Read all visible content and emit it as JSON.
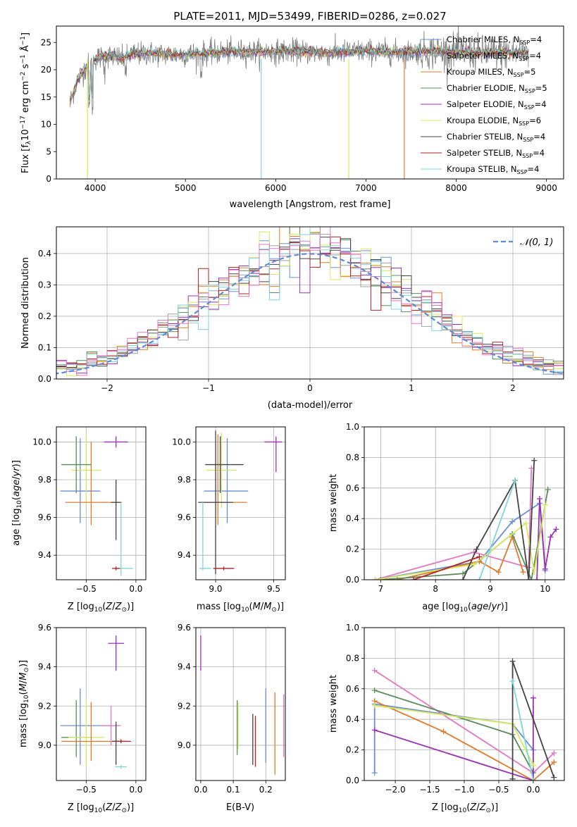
{
  "figure": {
    "title": "PLATE=2011, MJD=53499, FIBERID=0286, z=0.027"
  },
  "colors": [
    "#6a8fd8",
    "#9aa3a8",
    "#e07b2a",
    "#5d8b5d",
    "#9a32b5",
    "#d8e860",
    "#444444",
    "#b22222",
    "#7fd6d6",
    "#e377c2"
  ],
  "chart_data": [
    {
      "id": "spectrum",
      "type": "line",
      "xlabel": "wavelength [Angstrom, rest frame]",
      "ylabel": "Flux [fλ10⁻¹⁷ erg cm⁻² s⁻¹ Å⁻¹]",
      "xlim": [
        3570,
        9190
      ],
      "ylim": [
        0,
        28
      ],
      "xticks": [
        4000,
        5000,
        6000,
        7000,
        8000,
        9000
      ],
      "yticks": [
        0,
        5,
        10,
        15,
        20,
        25
      ],
      "legend_position": "top-right",
      "series": [
        {
          "name": "Chabrier MILES, N",
          "sub": "SSP",
          "suffix": "=4",
          "color": "#6a8fd8"
        },
        {
          "name": "Salpeter MILES, N",
          "sub": "SSP",
          "suffix": "=4",
          "color": "#9aa3a8"
        },
        {
          "name": "Kroupa MILES, N",
          "sub": "SSP",
          "suffix": "=5",
          "color": "#e07b2a"
        },
        {
          "name": "Chabrier ELODIE, N",
          "sub": "SSP",
          "suffix": "=5",
          "color": "#5d8b5d"
        },
        {
          "name": "Salpeter ELODIE, N",
          "sub": "SSP",
          "suffix": "=4",
          "color": "#9a32b5"
        },
        {
          "name": "Kroupa ELODIE, N",
          "sub": "SSP",
          "suffix": "=6",
          "color": "#d8e860"
        },
        {
          "name": "Chabrier STELIB, N",
          "sub": "SSP",
          "suffix": "=4",
          "color": "#444444"
        },
        {
          "name": "Salpeter STELIB, N",
          "sub": "SSP",
          "suffix": "=4",
          "color": "#b22222"
        },
        {
          "name": "Kroupa STELIB, N",
          "sub": "SSP",
          "suffix": "=4",
          "color": "#7fd6d6"
        }
      ],
      "spectrum_profile": {
        "x": [
          3720,
          3800,
          3900,
          4000,
          4100,
          4200,
          4300,
          4400,
          4600,
          4800,
          5000,
          5200,
          5400,
          5600,
          5800,
          6000,
          6200,
          6400,
          6600,
          6800,
          7000,
          7200,
          7400,
          7600,
          7800,
          8000,
          8200,
          8400,
          8600,
          8800
        ],
        "y": [
          14,
          18,
          20.5,
          22,
          22.5,
          22.5,
          22,
          22.8,
          23,
          22.8,
          22.8,
          23,
          23.2,
          23.3,
          23.3,
          23.3,
          23.4,
          23.2,
          23,
          23.3,
          23.4,
          23.3,
          23.2,
          23.3,
          23.4,
          23.2,
          23.1,
          23,
          23.1,
          23.2
        ]
      }
    },
    {
      "id": "residuals",
      "type": "histogram",
      "xlabel": "(data-model)/error",
      "ylabel": "Normed distribution",
      "xlim": [
        -2.5,
        2.5
      ],
      "ylim": [
        0,
        0.485
      ],
      "xticks": [
        -2,
        -1,
        0,
        1,
        2
      ],
      "xticklabels": [
        "−2",
        "−1",
        "0",
        "1",
        "2"
      ],
      "yticks": [
        0.0,
        0.1,
        0.2,
        0.3,
        0.4
      ],
      "yticklabels": [
        "0.0",
        "0.1",
        "0.2",
        "0.3",
        "0.4"
      ],
      "legend_label": "𝒩(0, 1)",
      "legend_position": "top-right",
      "bin_width": 0.1,
      "hist_range": [
        -2.5,
        2.5
      ],
      "reference_curve": "normal(0,1)"
    },
    {
      "id": "age-vs-Z",
      "type": "errorbar",
      "xlabel": "Z [log₁₀(Z/Z⊙)]",
      "ylabel": "age  [log₁₀(age/yr)]",
      "xlim": [
        -0.8,
        0.1
      ],
      "ylim": [
        9.27,
        10.08
      ],
      "xticks": [
        -0.5,
        0.0
      ],
      "xticklabels": [
        "−0.5",
        "0.0"
      ],
      "yticks": [
        9.4,
        9.6,
        9.8,
        10.0
      ],
      "yticklabels": [
        "9.4",
        "9.6",
        "9.8",
        "10.0"
      ],
      "points": [
        {
          "x": -0.56,
          "y": 9.74,
          "xerr": [
            0.2,
            0.2
          ],
          "yerr": [
            0.17,
            0.28
          ],
          "color": "#6a8fd8"
        },
        {
          "x": -0.5,
          "y": 9.85,
          "xerr": [
            0.15,
            0.15
          ],
          "yerr": [
            0.18,
            0.18
          ],
          "color": "#d8e860"
        },
        {
          "x": -0.45,
          "y": 9.68,
          "xerr": [
            0.26,
            0.31
          ],
          "yerr": [
            0.12,
            0.32
          ],
          "color": "#e07b2a"
        },
        {
          "x": -0.6,
          "y": 9.88,
          "xerr": [
            0.15,
            0.15
          ],
          "yerr": [
            0.15,
            0.15
          ],
          "color": "#5d8b5d"
        },
        {
          "x": -0.2,
          "y": 9.68,
          "xerr": [
            0.05,
            0.05
          ],
          "yerr": [
            0.2,
            0.12
          ],
          "color": "#444444"
        },
        {
          "x": -0.2,
          "y": 10.0,
          "xerr": [
            0.12,
            0.12
          ],
          "yerr": [
            0.03,
            0.03
          ],
          "color": "#9a32b5"
        },
        {
          "x": -0.15,
          "y": 9.33,
          "xerr": [
            0.06,
            0.12
          ],
          "yerr": [
            0.04,
            0.35
          ],
          "color": "#7fd6d6"
        },
        {
          "x": -0.2,
          "y": 9.33,
          "xerr": [
            0.04,
            0.04
          ],
          "yerr": [
            0.01,
            0.01
          ],
          "color": "#b22222"
        }
      ]
    },
    {
      "id": "age-vs-mass",
      "type": "errorbar",
      "xlabel": "mass [log₁₀(M/M⊙)]",
      "ylabel": "",
      "xlim": [
        8.83,
        9.6
      ],
      "ylim": [
        9.27,
        10.08
      ],
      "xticks": [
        9.0,
        9.5
      ],
      "xticklabels": [
        "9.0",
        "9.5"
      ],
      "yticks": [
        9.4,
        9.6,
        9.8,
        10.0
      ],
      "yticklabels": [
        "9.4",
        "9.6",
        "9.8",
        "10.0"
      ],
      "points": [
        {
          "x": 9.1,
          "y": 9.74,
          "xerr": [
            0.2,
            0.18
          ],
          "yerr": [
            0.17,
            0.28
          ],
          "color": "#6a8fd8"
        },
        {
          "x": 9.05,
          "y": 9.85,
          "xerr": [
            0.13,
            0.13
          ],
          "yerr": [
            0.2,
            0.2
          ],
          "color": "#d8e860"
        },
        {
          "x": 9.02,
          "y": 9.68,
          "xerr": [
            0.12,
            0.25
          ],
          "yerr": [
            0.12,
            0.36
          ],
          "color": "#e07b2a"
        },
        {
          "x": 9.04,
          "y": 9.88,
          "xerr": [
            0.13,
            0.2
          ],
          "yerr": [
            0.15,
            0.15
          ],
          "color": "#444444"
        },
        {
          "x": 9.52,
          "y": 10.0,
          "xerr": [
            0.1,
            0.05
          ],
          "yerr": [
            0.16,
            0.03
          ],
          "color": "#9a32b5"
        },
        {
          "x": 9.0,
          "y": 9.68,
          "xerr": [
            0.15,
            0.15
          ],
          "yerr": [
            0.38,
            0.38
          ],
          "color": "#444444"
        },
        {
          "x": 8.89,
          "y": 9.33,
          "xerr": [
            0.03,
            0.07
          ],
          "yerr": [
            0.01,
            0.35
          ],
          "color": "#7fd6d6"
        },
        {
          "x": 9.07,
          "y": 9.33,
          "xerr": [
            0.09,
            0.09
          ],
          "yerr": [
            0.01,
            0.01
          ],
          "color": "#b22222"
        }
      ]
    },
    {
      "id": "weight-vs-age",
      "type": "line",
      "xlabel": "age  [log₁₀(age/yr)]",
      "ylabel": "mass weight",
      "xlim": [
        6.7,
        10.35
      ],
      "ylim": [
        0,
        1.0
      ],
      "xticks": [
        7,
        8,
        9,
        10
      ],
      "yticks": [
        0.0,
        0.2,
        0.4,
        0.6,
        0.8,
        1.0
      ],
      "yticklabels": [
        "0.0",
        "0.2",
        "0.4",
        "0.6",
        "0.8",
        "1.0"
      ],
      "series": [
        {
          "color": "#6a8fd8",
          "x": [
            6.9,
            8.8,
            9.4,
            9.9,
            10.0
          ],
          "y": [
            0.0,
            0.12,
            0.38,
            0.5,
            0.06
          ]
        },
        {
          "color": "#e377c2",
          "x": [
            6.9,
            8.7,
            9.7,
            9.75
          ],
          "y": [
            0.0,
            0.18,
            0.08,
            0.73
          ]
        },
        {
          "color": "#e07b2a",
          "x": [
            7.3,
            8.8,
            9.15,
            9.4,
            9.6
          ],
          "y": [
            0.0,
            0.12,
            0.05,
            0.28,
            0.05
          ]
        },
        {
          "color": "#5d8b5d",
          "x": [
            7.0,
            8.5,
            9.4,
            9.75,
            10.05
          ],
          "y": [
            0.0,
            0.04,
            0.3,
            0.0,
            0.59
          ]
        },
        {
          "color": "#9a32b5",
          "x": [
            9.85,
            9.9,
            10.0,
            10.1,
            10.2
          ],
          "y": [
            0.0,
            0.53,
            0.07,
            0.28,
            0.33
          ]
        },
        {
          "color": "#d8e860",
          "x": [
            6.9,
            8.7,
            9.65,
            9.8,
            10.0
          ],
          "y": [
            0.0,
            0.1,
            0.37,
            0.05,
            0.49
          ]
        },
        {
          "color": "#444444",
          "x": [
            8.5,
            8.75,
            9.45,
            9.7,
            9.8
          ],
          "y": [
            0.0,
            0.2,
            0.65,
            0.0,
            0.78
          ]
        },
        {
          "color": "#b22222",
          "x": [
            7.6,
            8.8
          ],
          "y": [
            0.0,
            0.15
          ]
        },
        {
          "color": "#7fd6d6",
          "x": [
            8.8,
            9.45
          ],
          "y": [
            0.0,
            0.65
          ]
        }
      ]
    },
    {
      "id": "mass-vs-Z",
      "type": "errorbar",
      "xlabel": "Z [log₁₀(Z/Z⊙)]",
      "ylabel": "mass [log₁₀(M/M⊙)]",
      "xlim": [
        -0.8,
        0.1
      ],
      "ylim": [
        8.82,
        9.6
      ],
      "xticks": [
        -0.5,
        0.0
      ],
      "xticklabels": [
        "−0.5",
        "0.0"
      ],
      "yticks": [
        9.0,
        9.2,
        9.4,
        9.6
      ],
      "yticklabels": [
        "9.0",
        "9.2",
        "9.4",
        "9.6"
      ],
      "points": [
        {
          "x": -0.56,
          "y": 9.1,
          "xerr": [
            0.2,
            0.35
          ],
          "yerr": [
            0.2,
            0.19
          ],
          "color": "#6a8fd8"
        },
        {
          "x": -0.6,
          "y": 9.04,
          "xerr": [
            0.15,
            0.15
          ],
          "yerr": [
            0.1,
            0.19
          ],
          "color": "#5d8b5d"
        },
        {
          "x": -0.5,
          "y": 9.04,
          "xerr": [
            0.18,
            0.18
          ],
          "yerr": [
            0.15,
            0.19
          ],
          "color": "#d8e860"
        },
        {
          "x": -0.45,
          "y": 9.02,
          "xerr": [
            0.3,
            0.3
          ],
          "yerr": [
            0.1,
            0.2
          ],
          "color": "#e07b2a"
        },
        {
          "x": -0.2,
          "y": 9.52,
          "xerr": [
            0.08,
            0.08
          ],
          "yerr": [
            0.14,
            0.04
          ],
          "color": "#9a32b5"
        },
        {
          "x": -0.25,
          "y": 9.1,
          "xerr": [
            0.1,
            0.1
          ],
          "yerr": [
            0.1,
            0.1
          ],
          "color": "#e377c2"
        },
        {
          "x": -0.2,
          "y": 9.02,
          "xerr": [
            0.04,
            0.1
          ],
          "yerr": [
            0.12,
            0.1
          ],
          "color": "#444444"
        },
        {
          "x": -0.15,
          "y": 9.02,
          "xerr": [
            0.06,
            0.1
          ],
          "yerr": [
            0.01,
            0.01
          ],
          "color": "#b22222"
        },
        {
          "x": -0.15,
          "y": 8.89,
          "xerr": [
            0.06,
            0.06
          ],
          "yerr": [
            0.01,
            0.01
          ],
          "color": "#7fd6d6"
        }
      ]
    },
    {
      "id": "mass-vs-ebv",
      "type": "errorbar",
      "xlabel": "E(B-V)",
      "ylabel": "",
      "xlim": [
        -0.015,
        0.26
      ],
      "ylim": [
        8.82,
        9.6
      ],
      "xticks": [
        0.0,
        0.1,
        0.2
      ],
      "xticklabels": [
        "0.0",
        "0.1",
        "0.2"
      ],
      "yticks": [
        9.0,
        9.2,
        9.4,
        9.6
      ],
      "yticklabels": [
        "9.0",
        "9.2",
        "9.4",
        "9.6"
      ],
      "points": [
        {
          "x": 0.0,
          "y": 9.47,
          "xerr": [
            0,
            0
          ],
          "yerr": [
            0.09,
            0.09
          ],
          "color": "#9a32b5"
        },
        {
          "x": 0.112,
          "y": 9.09,
          "xerr": [
            0,
            0
          ],
          "yerr": [
            0.14,
            0.14
          ],
          "color": "#5d8b5d"
        },
        {
          "x": 0.115,
          "y": 9.1,
          "xerr": [
            0,
            0
          ],
          "yerr": [
            0.12,
            0.12
          ],
          "color": "#d8e860"
        },
        {
          "x": 0.16,
          "y": 9.03,
          "xerr": [
            0,
            0
          ],
          "yerr": [
            0.13,
            0.13
          ],
          "color": "#444444"
        },
        {
          "x": 0.168,
          "y": 9.02,
          "xerr": [
            0,
            0
          ],
          "yerr": [
            0.13,
            0.13
          ],
          "color": "#b22222"
        },
        {
          "x": 0.2,
          "y": 9.1,
          "xerr": [
            0,
            0
          ],
          "yerr": [
            0.19,
            0.19
          ],
          "color": "#6a8fd8"
        },
        {
          "x": 0.228,
          "y": 9.06,
          "xerr": [
            0,
            0
          ],
          "yerr": [
            0.21,
            0.21
          ],
          "color": "#e07b2a"
        },
        {
          "x": 0.255,
          "y": 9.1,
          "xerr": [
            0,
            0
          ],
          "yerr": [
            0.16,
            0.16
          ],
          "color": "#e377c2"
        }
      ]
    },
    {
      "id": "weight-vs-Z",
      "type": "line",
      "xlabel": "Z [log₁₀(Z/Z⊙)]",
      "ylabel": "mass weight",
      "xlim": [
        -2.45,
        0.45
      ],
      "ylim": [
        0,
        1.0
      ],
      "xticks": [
        -2.0,
        -1.5,
        -1.0,
        -0.5,
        0.0
      ],
      "xticklabels": [
        "−2.0",
        "−1.5",
        "−1.0",
        "−0.5",
        "0.0"
      ],
      "yticks": [
        0.0,
        0.2,
        0.4,
        0.6,
        0.8,
        1.0
      ],
      "yticklabels": [
        "0.0",
        "0.2",
        "0.4",
        "0.6",
        "0.8",
        "1.0"
      ],
      "series": [
        {
          "color": "#6a8fd8",
          "x": [
            -2.3,
            -2.3,
            -0.3,
            0.0
          ],
          "y": [
            0.05,
            0.5,
            0.37,
            0.2
          ]
        },
        {
          "color": "#e377c2",
          "x": [
            -2.3,
            0.0,
            0.3
          ],
          "y": [
            0.72,
            0.05,
            0.18
          ]
        },
        {
          "color": "#e07b2a",
          "x": [
            -2.3,
            -1.3,
            0.0,
            0.3
          ],
          "y": [
            0.52,
            0.32,
            0.0,
            0.12
          ]
        },
        {
          "color": "#5d8b5d",
          "x": [
            -2.3,
            -0.3,
            0.0
          ],
          "y": [
            0.59,
            0.3,
            0.05
          ]
        },
        {
          "color": "#9a32b5",
          "x": [
            -2.3,
            0.0,
            0.0
          ],
          "y": [
            0.33,
            0.0,
            0.54
          ]
        },
        {
          "color": "#d8e860",
          "x": [
            -2.3,
            -0.3,
            0.0
          ],
          "y": [
            0.49,
            0.37,
            0.1
          ]
        },
        {
          "color": "#444444",
          "x": [
            -0.3,
            -0.3,
            0.3
          ],
          "y": [
            0.01,
            0.78,
            0.02
          ]
        },
        {
          "color": "#7fd6d6",
          "x": [
            -0.3,
            0.0
          ],
          "y": [
            0.65,
            0.0
          ]
        }
      ]
    }
  ]
}
